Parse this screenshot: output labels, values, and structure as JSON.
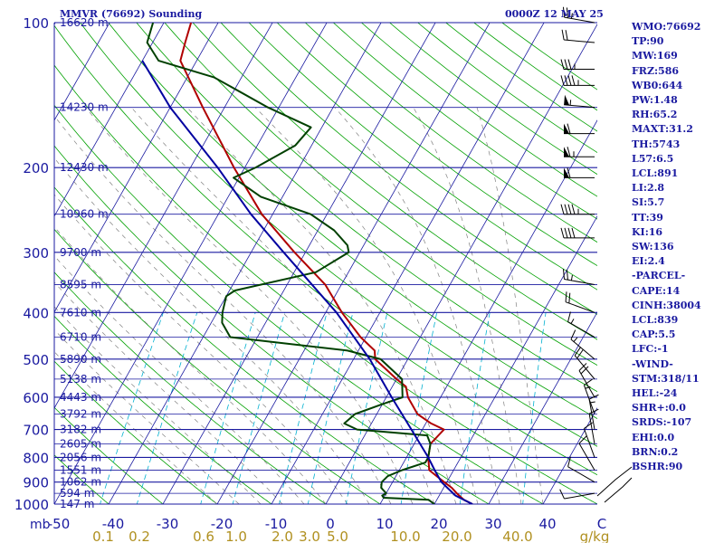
{
  "chart_data": {
    "type": "skew-t",
    "title": "MMVR (76692) Sounding",
    "valid_time": "0000Z 12 MAY 25",
    "x_unit": "mb",
    "y_axis_pressure_ticks": [
      "100",
      "200",
      "300",
      "400",
      "500",
      "600",
      "700",
      "800",
      "900",
      "1000"
    ],
    "temperature_ticks": [
      "-50",
      "-40",
      "-30",
      "-20",
      "-10",
      "0",
      "10",
      "20",
      "30",
      "40",
      "C"
    ],
    "mixing_ratio_ticks": [
      "0.1",
      "0.2",
      "0.6",
      "1.0",
      "2.0",
      "3.0",
      "5.0",
      "10.0",
      "20.0",
      "40.0",
      "g/kg"
    ],
    "height_labels": [
      {
        "p": 100,
        "label": "16620 m"
      },
      {
        "p": 150,
        "label": "14230 m"
      },
      {
        "p": 200,
        "label": "12430 m"
      },
      {
        "p": 250,
        "label": "10960 m"
      },
      {
        "p": 300,
        "label": "9700 m"
      },
      {
        "p": 350,
        "label": "8595 m"
      },
      {
        "p": 400,
        "label": "7610 m"
      },
      {
        "p": 450,
        "label": "6710 m"
      },
      {
        "p": 500,
        "label": "5890 m"
      },
      {
        "p": 550,
        "label": "5138 m"
      },
      {
        "p": 600,
        "label": "4443 m"
      },
      {
        "p": 650,
        "label": "3792 m"
      },
      {
        "p": 700,
        "label": "3182 m"
      },
      {
        "p": 750,
        "label": "2605 m"
      },
      {
        "p": 800,
        "label": "2056 m"
      },
      {
        "p": 850,
        "label": "1551 m"
      },
      {
        "p": 900,
        "label": "1062 m"
      },
      {
        "p": 950,
        "label": "594 m"
      },
      {
        "p": 1000,
        "label": "147 m"
      }
    ],
    "series": [
      {
        "name": "Temperature",
        "color": "#b00000",
        "points": [
          [
            1000,
            27
          ],
          [
            980,
            25
          ],
          [
            950,
            23
          ],
          [
            925,
            21.5
          ],
          [
            900,
            19.5
          ],
          [
            875,
            17.5
          ],
          [
            850,
            15.5
          ],
          [
            800,
            14
          ],
          [
            750,
            13
          ],
          [
            700,
            14
          ],
          [
            680,
            11
          ],
          [
            650,
            7.5
          ],
          [
            600,
            4
          ],
          [
            570,
            2.5
          ],
          [
            550,
            0
          ],
          [
            500,
            -6
          ],
          [
            480,
            -7
          ],
          [
            450,
            -11
          ],
          [
            400,
            -17
          ],
          [
            350,
            -23
          ],
          [
            300,
            -32
          ],
          [
            250,
            -42
          ],
          [
            200,
            -52
          ],
          [
            150,
            -64
          ],
          [
            120,
            -73
          ],
          [
            110,
            -74
          ],
          [
            100,
            -75
          ]
        ]
      },
      {
        "name": "Dewpoint",
        "color": "#004000",
        "points": [
          [
            1000,
            20
          ],
          [
            980,
            18.5
          ],
          [
            970,
            10
          ],
          [
            960,
            9.5
          ],
          [
            950,
            10
          ],
          [
            925,
            8.5
          ],
          [
            900,
            8
          ],
          [
            875,
            8.5
          ],
          [
            850,
            10.5
          ],
          [
            820,
            14
          ],
          [
            800,
            14
          ],
          [
            750,
            13
          ],
          [
            720,
            11.5
          ],
          [
            700,
            -2
          ],
          [
            680,
            -5
          ],
          [
            650,
            -4
          ],
          [
            620,
            0
          ],
          [
            600,
            3
          ],
          [
            550,
            1
          ],
          [
            500,
            -5
          ],
          [
            480,
            -12
          ],
          [
            450,
            -35
          ],
          [
            420,
            -38
          ],
          [
            400,
            -39
          ],
          [
            370,
            -40
          ],
          [
            360,
            -39
          ],
          [
            330,
            -26
          ],
          [
            300,
            -22
          ],
          [
            290,
            -23
          ],
          [
            270,
            -27
          ],
          [
            250,
            -33
          ],
          [
            230,
            -44
          ],
          [
            210,
            -51
          ],
          [
            200,
            -48
          ],
          [
            180,
            -43
          ],
          [
            165,
            -42
          ],
          [
            150,
            -52
          ],
          [
            130,
            -65
          ],
          [
            120,
            -77
          ],
          [
            110,
            -81
          ],
          [
            100,
            -82
          ]
        ]
      },
      {
        "name": "Parcel",
        "color": "#0000a0",
        "points": [
          [
            1000,
            27
          ],
          [
            960,
            23
          ],
          [
            900,
            19
          ],
          [
            850,
            16.5
          ],
          [
            800,
            14
          ],
          [
            700,
            8
          ],
          [
            600,
            1
          ],
          [
            500,
            -7
          ],
          [
            400,
            -18
          ],
          [
            300,
            -34
          ],
          [
            250,
            -44
          ],
          [
            200,
            -55
          ],
          [
            150,
            -70
          ],
          [
            120,
            -80
          ]
        ]
      }
    ],
    "wind_barbs": [
      {
        "p": 100,
        "dir": 280,
        "kt": 25
      },
      {
        "p": 110,
        "dir": 275,
        "kt": 20
      },
      {
        "p": 125,
        "dir": 270,
        "kt": 35
      },
      {
        "p": 135,
        "dir": 270,
        "kt": 45
      },
      {
        "p": 150,
        "dir": 275,
        "kt": 55
      },
      {
        "p": 170,
        "dir": 270,
        "kt": 60
      },
      {
        "p": 190,
        "dir": 270,
        "kt": 65
      },
      {
        "p": 210,
        "dir": 270,
        "kt": 60
      },
      {
        "p": 250,
        "dir": 270,
        "kt": 45
      },
      {
        "p": 280,
        "dir": 270,
        "kt": 40
      },
      {
        "p": 350,
        "dir": 280,
        "kt": 25
      },
      {
        "p": 400,
        "dir": 290,
        "kt": 20
      },
      {
        "p": 450,
        "dir": 300,
        "kt": 15
      },
      {
        "p": 500,
        "dir": 310,
        "kt": 15
      },
      {
        "p": 550,
        "dir": 320,
        "kt": 20
      },
      {
        "p": 600,
        "dir": 330,
        "kt": 20
      },
      {
        "p": 650,
        "dir": 340,
        "kt": 15
      },
      {
        "p": 700,
        "dir": 350,
        "kt": 15
      },
      {
        "p": 750,
        "dir": 350,
        "kt": 10
      },
      {
        "p": 800,
        "dir": 340,
        "kt": 10
      },
      {
        "p": 850,
        "dir": 330,
        "kt": 10
      },
      {
        "p": 900,
        "dir": 300,
        "kt": 10
      },
      {
        "p": 950,
        "dir": 260,
        "kt": 10
      }
    ],
    "colors": {
      "isobar": "#1a1aa0",
      "isotherm": "#1a1aa0",
      "dry_adiabat": "#00a000",
      "mixing_ratio": "#00b0d0",
      "moist_adiabat": "#808080",
      "header": "#1a1aa0",
      "tick_text": "#1a1aa0",
      "mr_text": "#b09020"
    }
  },
  "indices": [
    "WMO:76692",
    "TP:90",
    "MW:169",
    "FRZ:586",
    "WB0:644",
    "PW:1.48",
    "RH:65.2",
    "MAXT:31.2",
    "TH:5743",
    "L57:6.5",
    "LCL:891",
    "LI:2.8",
    "SI:5.7",
    "TT:39",
    "KI:16",
    "SW:136",
    "EI:2.4",
    "-PARCEL-",
    "CAPE:14",
    "CINH:38004",
    "LCL:839",
    "CAP:5.5",
    "LFC:-1",
    "-WIND-",
    "STM:318/11",
    "HEL:-24",
    "SHR+:0.0",
    "SRDS:-107",
    "EHI:0.0",
    "BRN:0.2",
    "BSHR:90"
  ]
}
